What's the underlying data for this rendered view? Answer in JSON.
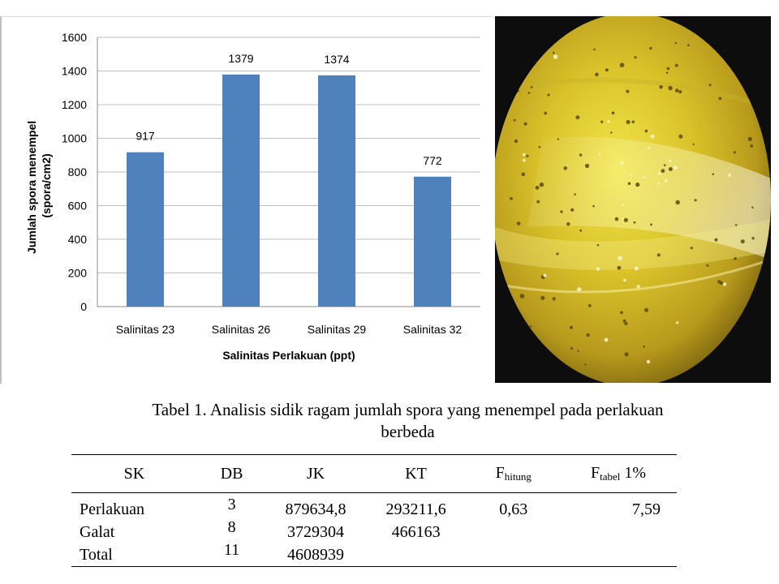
{
  "chart_data": {
    "type": "bar",
    "categories": [
      "Salinitas 23",
      "Salinitas 26",
      "Salinitas 29",
      "Salinitas 32"
    ],
    "values": [
      917,
      1379,
      1374,
      772
    ],
    "value_labels": [
      "917",
      "1379",
      "1374",
      "772"
    ],
    "xlabel": "Salinitas Perlakuan (ppt)",
    "ylabel_lines": [
      "Jumlah spora menempel",
      "(spora/cm2)"
    ],
    "ylim": [
      0,
      1600
    ],
    "yticks": [
      0,
      200,
      400,
      600,
      800,
      1000,
      1200,
      1400,
      1600
    ],
    "grid": true,
    "bar_color": "#4f81bd"
  },
  "caption": {
    "line1": "Tabel 1. Analisis sidik ragam jumlah spora yang menempel pada perlakuan",
    "line2": "berbeda"
  },
  "table": {
    "headers": {
      "sk": "SK",
      "db": "DB",
      "jk": "JK",
      "kt": "KT",
      "fhit": "F",
      "fhit_sub": "hitung",
      "ftab": "F",
      "ftab_sub": "tabel",
      "ftab_suffix": " 1%"
    },
    "rows": [
      {
        "sk": "Perlakuan",
        "db": "3",
        "jk": "879634,8",
        "kt": "293211,6",
        "fhit": "0,63",
        "ftab": "7,59"
      },
      {
        "sk": "Galat",
        "db": "8",
        "jk": "3729304",
        "kt": "466163",
        "fhit": "",
        "ftab": ""
      },
      {
        "sk": "Total",
        "db": "11",
        "jk": "4608939",
        "kt": "",
        "fhit": "",
        "ftab": ""
      }
    ]
  }
}
